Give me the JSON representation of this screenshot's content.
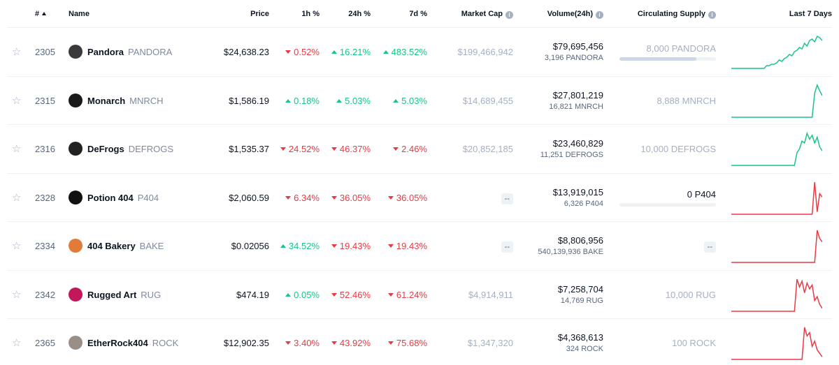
{
  "columns": {
    "rank": "#",
    "name": "Name",
    "price": "Price",
    "h1": "1h %",
    "h24": "24h %",
    "d7": "7d %",
    "market_cap": "Market Cap",
    "volume": "Volume(24h)",
    "supply": "Circulating Supply",
    "last7": "Last 7 Days"
  },
  "colors": {
    "up": "#16c784",
    "down": "#ea3943"
  },
  "rows": [
    {
      "rank": "2305",
      "name": "Pandora",
      "symbol": "PANDORA",
      "icon": "pandora-icon",
      "icon_color": "#3a3a3a",
      "price": "$24,638.23",
      "h1": "0.52%",
      "h1_dir": "down",
      "h24": "16.21%",
      "h24_dir": "up",
      "d7": "483.52%",
      "d7_dir": "up",
      "market_cap": "$199,466,942",
      "volume": "$79,695,456",
      "volume_sub": "3,196 PANDORA",
      "supply": "8,000 PANDORA",
      "supply_progress": 0.8,
      "supply_dark": false,
      "trend": "up",
      "spark": [
        20,
        20,
        20,
        20,
        20,
        20,
        20,
        20,
        20,
        20,
        20,
        20,
        20,
        20,
        22,
        22,
        23,
        23,
        24,
        26,
        25,
        27,
        28,
        30,
        29,
        32,
        33,
        35,
        34,
        38,
        36,
        40,
        41,
        39,
        43,
        42,
        40
      ]
    },
    {
      "rank": "2315",
      "name": "Monarch",
      "symbol": "MNRCH",
      "icon": "monarch-icon",
      "icon_color": "#1a1a1a",
      "price": "$1,586.19",
      "h1": "0.18%",
      "h1_dir": "up",
      "h24": "5.03%",
      "h24_dir": "up",
      "d7": "5.03%",
      "d7_dir": "up",
      "market_cap": "$14,689,455",
      "volume": "$27,801,219",
      "volume_sub": "16,821 MNRCH",
      "supply": "8,888 MNRCH",
      "supply_progress": null,
      "supply_dark": false,
      "trend": "up",
      "spark": [
        5,
        5,
        5,
        5,
        5,
        5,
        5,
        5,
        5,
        5,
        5,
        5,
        5,
        5,
        5,
        5,
        5,
        5,
        5,
        5,
        5,
        5,
        5,
        5,
        5,
        5,
        5,
        5,
        5,
        5,
        5,
        5,
        5,
        35,
        45,
        38,
        32
      ]
    },
    {
      "rank": "2316",
      "name": "DeFrogs",
      "symbol": "DEFROGS",
      "icon": "defrogs-icon",
      "icon_color": "#222222",
      "price": "$1,535.37",
      "h1": "24.52%",
      "h1_dir": "down",
      "h24": "46.37%",
      "h24_dir": "down",
      "d7": "2.46%",
      "d7_dir": "down",
      "market_cap": "$20,852,185",
      "volume": "$23,460,829",
      "volume_sub": "11,251 DEFROGS",
      "supply": "10,000 DEFROGS",
      "supply_progress": null,
      "supply_dark": false,
      "trend": "up",
      "spark": [
        5,
        5,
        5,
        5,
        5,
        5,
        5,
        5,
        5,
        5,
        5,
        5,
        5,
        5,
        5,
        5,
        5,
        5,
        5,
        5,
        5,
        5,
        5,
        5,
        5,
        5,
        18,
        22,
        30,
        28,
        38,
        32,
        36,
        28,
        34,
        24,
        20
      ]
    },
    {
      "rank": "2328",
      "name": "Potion 404",
      "symbol": "P404",
      "icon": "potion-404-icon",
      "icon_color": "#111111",
      "price": "$2,060.59",
      "h1": "6.34%",
      "h1_dir": "down",
      "h24": "36.05%",
      "h24_dir": "down",
      "d7": "36.05%",
      "d7_dir": "down",
      "market_cap": "--",
      "volume": "$13,919,015",
      "volume_sub": "6,326 P404",
      "supply": "0 P404",
      "supply_progress": 0,
      "supply_dark": true,
      "trend": "down",
      "spark": [
        5,
        5,
        5,
        5,
        5,
        5,
        5,
        5,
        5,
        5,
        5,
        5,
        5,
        5,
        5,
        5,
        5,
        5,
        5,
        5,
        5,
        5,
        5,
        5,
        5,
        5,
        5,
        5,
        5,
        5,
        5,
        5,
        5,
        44,
        8,
        30,
        26
      ]
    },
    {
      "rank": "2334",
      "name": "404 Bakery",
      "symbol": "BAKE",
      "icon": "404-bakery-icon",
      "icon_color": "#e07b39",
      "price": "$0.02056",
      "h1": "34.52%",
      "h1_dir": "up",
      "h24": "19.43%",
      "h24_dir": "down",
      "d7": "19.43%",
      "d7_dir": "down",
      "market_cap": "--",
      "volume": "$8,806,956",
      "volume_sub": "540,139,936 BAKE",
      "supply": "--",
      "supply_progress": null,
      "supply_dark": false,
      "trend": "down",
      "spark": [
        5,
        5,
        5,
        5,
        5,
        5,
        5,
        5,
        5,
        5,
        5,
        5,
        5,
        5,
        5,
        5,
        5,
        5,
        5,
        5,
        5,
        5,
        5,
        5,
        5,
        5,
        5,
        5,
        5,
        5,
        5,
        5,
        5,
        5,
        44,
        34,
        30
      ]
    },
    {
      "rank": "2342",
      "name": "Rugged Art",
      "symbol": "RUG",
      "icon": "rugged-art-icon",
      "icon_color": "#c2185b",
      "price": "$474.19",
      "h1": "0.05%",
      "h1_dir": "up",
      "h24": "52.46%",
      "h24_dir": "down",
      "d7": "61.24%",
      "d7_dir": "down",
      "market_cap": "$4,914,911",
      "volume": "$7,258,704",
      "volume_sub": "14,769 RUG",
      "supply": "10,000 RUG",
      "supply_progress": null,
      "supply_dark": false,
      "trend": "down",
      "spark": [
        3,
        3,
        3,
        3,
        3,
        3,
        3,
        3,
        3,
        3,
        3,
        3,
        3,
        3,
        3,
        3,
        3,
        3,
        3,
        3,
        3,
        3,
        3,
        3,
        3,
        3,
        36,
        28,
        34,
        22,
        32,
        26,
        30,
        14,
        18,
        10,
        6
      ]
    },
    {
      "rank": "2365",
      "name": "EtherRock404",
      "symbol": "ROCK",
      "icon": "etherrock404-icon",
      "icon_color": "#9a8f86",
      "price": "$12,902.35",
      "h1": "3.40%",
      "h1_dir": "down",
      "h24": "43.92%",
      "h24_dir": "down",
      "d7": "75.68%",
      "d7_dir": "down",
      "market_cap": "$1,347,320",
      "volume": "$4,368,613",
      "volume_sub": "324 ROCK",
      "supply": "100 ROCK",
      "supply_progress": null,
      "supply_dark": false,
      "trend": "down",
      "spark": [
        3,
        3,
        3,
        3,
        3,
        3,
        3,
        3,
        3,
        3,
        3,
        3,
        3,
        3,
        3,
        3,
        3,
        3,
        3,
        3,
        3,
        3,
        3,
        3,
        3,
        3,
        3,
        3,
        3,
        40,
        30,
        34,
        18,
        24,
        14,
        10,
        6
      ]
    }
  ]
}
